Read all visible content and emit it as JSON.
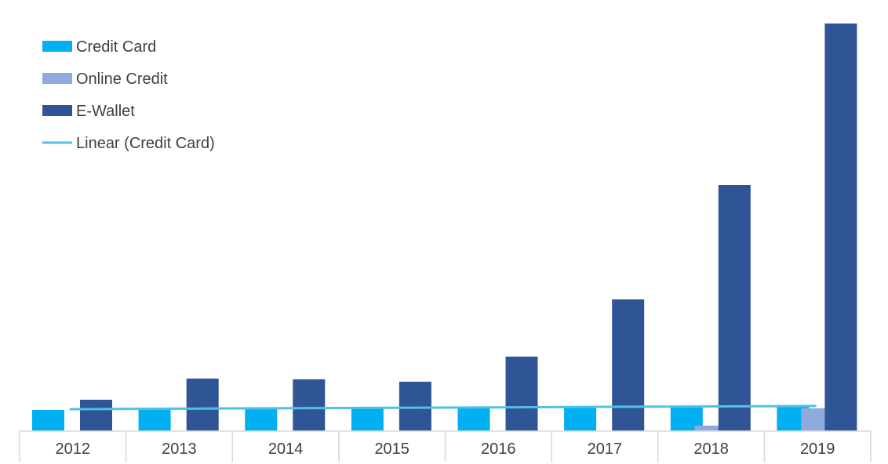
{
  "chart_data": {
    "type": "bar",
    "categories": [
      "2012",
      "2013",
      "2014",
      "2015",
      "2016",
      "2017",
      "2018",
      "2019"
    ],
    "series": [
      {
        "name": "Credit Card",
        "color": "#00B0F0",
        "values": [
          27,
          29,
          30,
          29,
          31,
          31,
          32,
          31
        ]
      },
      {
        "name": "Online Credit",
        "color": "#8FAADC",
        "values": [
          0,
          0,
          0,
          0,
          0,
          0,
          7,
          29
        ]
      },
      {
        "name": "E-Wallet",
        "color": "#2F5597",
        "values": [
          40,
          67,
          66,
          63,
          95,
          168,
          314,
          520
        ]
      }
    ],
    "trendline": {
      "name": "Linear (Credit Card)",
      "series": "Credit Card",
      "type": "linear",
      "color": "#4FC1E9"
    },
    "ylim": [
      0,
      520
    ],
    "yaxis_visible": false,
    "grid": false,
    "legend": "top-left",
    "title": "",
    "xlabel": "",
    "ylabel": ""
  }
}
